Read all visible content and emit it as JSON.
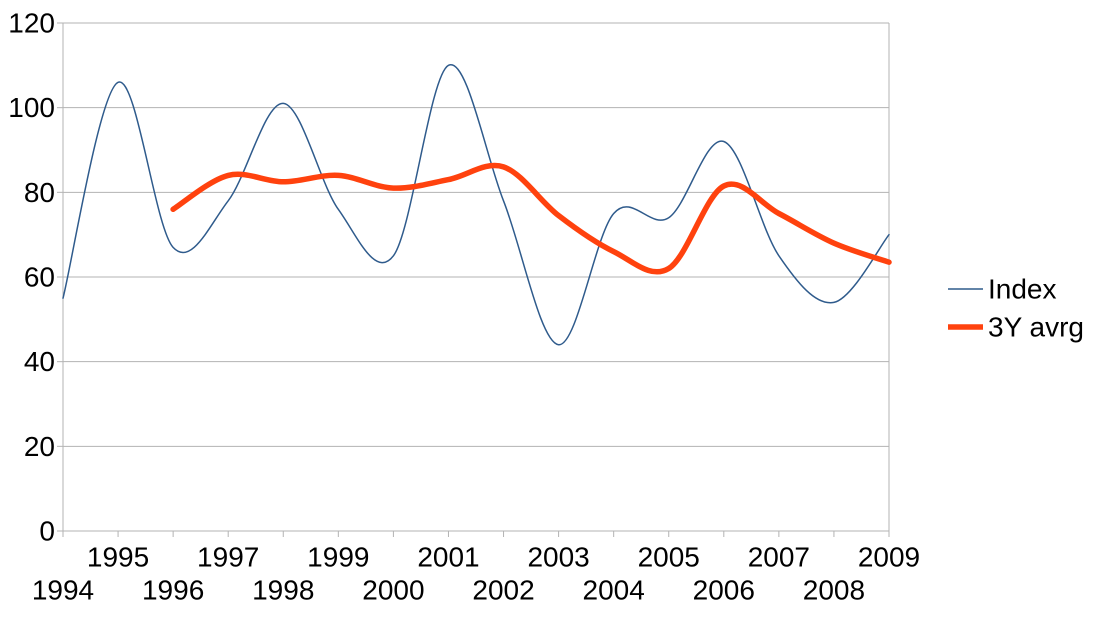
{
  "chart_data": {
    "type": "line",
    "title": "",
    "xlabel": "",
    "ylabel": "",
    "x_range": [
      1994,
      2009
    ],
    "x": [
      1994,
      1995,
      1996,
      1997,
      1998,
      1999,
      2000,
      2001,
      2002,
      2003,
      2004,
      2005,
      2006,
      2007,
      2008,
      2009
    ],
    "ylim": [
      0,
      120
    ],
    "y_tick_step": 20,
    "y_tick_labels": [
      "0",
      "20",
      "40",
      "60",
      "80",
      "100",
      "120"
    ],
    "grid": true,
    "grid_color": "#b3b3b3",
    "axis_text_color": "#000000",
    "legend_position": "right",
    "smoothing": "spline",
    "series": [
      {
        "name": "Index",
        "color": "#2f5b8c",
        "stroke_width": 1.5,
        "x_start": 1994,
        "values": [
          55,
          106,
          67,
          78,
          101,
          76,
          65,
          110,
          78,
          44,
          75,
          74,
          92,
          65,
          54,
          70
        ]
      },
      {
        "name": "3Y avrg",
        "color": "#ff420e",
        "stroke_width": 5.5,
        "x_start": 1996,
        "values": [
          76,
          84,
          82.5,
          84,
          81,
          83,
          86,
          74.5,
          66,
          62,
          81.5,
          75,
          68,
          63.5
        ]
      }
    ]
  },
  "legend": {
    "items": [
      {
        "label": "Index"
      },
      {
        "label": "3Y avrg"
      }
    ]
  }
}
